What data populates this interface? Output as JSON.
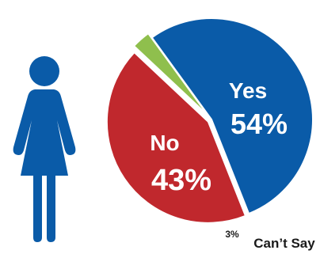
{
  "chart_data": {
    "type": "pie",
    "categories": [
      "Yes",
      "No",
      "Can’t Say"
    ],
    "values": [
      54,
      43,
      3
    ],
    "value_labels": [
      "54%",
      "43%",
      "3%"
    ],
    "colors": [
      "#0a5ba8",
      "#c0282d",
      "#8fbf4d"
    ],
    "legend": "none"
  },
  "figure": {
    "icon": "woman-icon",
    "icon_color": "#0a5ba8"
  }
}
